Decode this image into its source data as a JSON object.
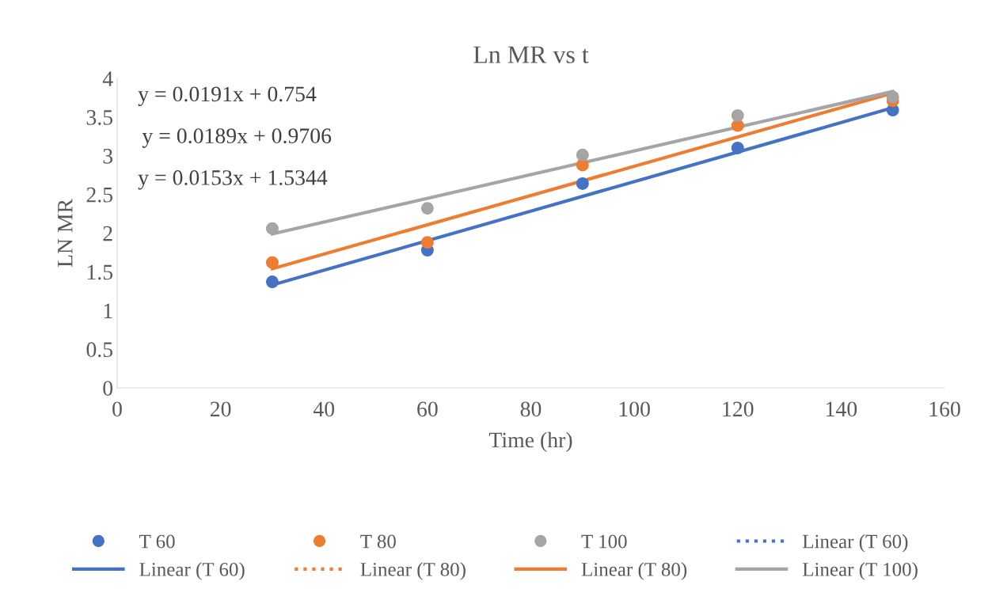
{
  "chart_data": {
    "type": "scatter",
    "title": "Ln MR vs t",
    "xlabel": "Time (hr)",
    "ylabel": "LN MR",
    "xlim": [
      0,
      160
    ],
    "xticks": [
      0,
      20,
      40,
      60,
      80,
      100,
      120,
      140,
      160
    ],
    "ylim": [
      0,
      4
    ],
    "yticks": [
      0,
      0.5,
      1,
      1.5,
      2,
      2.5,
      3,
      3.5,
      4
    ],
    "grid": false,
    "legend": "bottom",
    "annotations": [
      "y = 0.0191x + 0.754",
      "y = 0.0189x + 0.9706",
      "y = 0.0153x + 1.5344"
    ],
    "series": [
      {
        "name": "T 60",
        "color": "#4472c4",
        "marker": "circle",
        "x": [
          30,
          60,
          90,
          120,
          150
        ],
        "values": [
          1.37,
          1.78,
          2.64,
          3.1,
          3.59
        ]
      },
      {
        "name": "T 80",
        "color": "#ed7d31",
        "marker": "circle",
        "x": [
          30,
          60,
          90,
          120,
          150
        ],
        "values": [
          1.62,
          1.88,
          2.88,
          3.39,
          3.71
        ]
      },
      {
        "name": "T 100",
        "color": "#a5a5a5",
        "marker": "circle",
        "x": [
          30,
          60,
          90,
          120,
          150
        ],
        "values": [
          2.06,
          2.32,
          3.01,
          3.52,
          3.76
        ]
      },
      {
        "type": "line",
        "name": "Linear (T 60)",
        "color": "#4472c4",
        "line_style": "dotted"
      },
      {
        "type": "line",
        "name": "Linear (T 60)",
        "color": "#4472c4",
        "line_style": "solid",
        "x": [
          30,
          150
        ],
        "values": [
          1.33,
          3.62
        ]
      },
      {
        "type": "line",
        "name": "Linear (T 80)",
        "color": "#ed7d31",
        "line_style": "dotted"
      },
      {
        "type": "line",
        "name": "Linear (T 80)",
        "color": "#ed7d31",
        "line_style": "solid",
        "x": [
          30,
          150
        ],
        "values": [
          1.54,
          3.81
        ]
      },
      {
        "type": "line",
        "name": "Linear (T 100)",
        "color": "#a5a5a5",
        "line_style": "solid",
        "x": [
          30,
          150
        ],
        "values": [
          1.99,
          3.83
        ]
      }
    ]
  }
}
